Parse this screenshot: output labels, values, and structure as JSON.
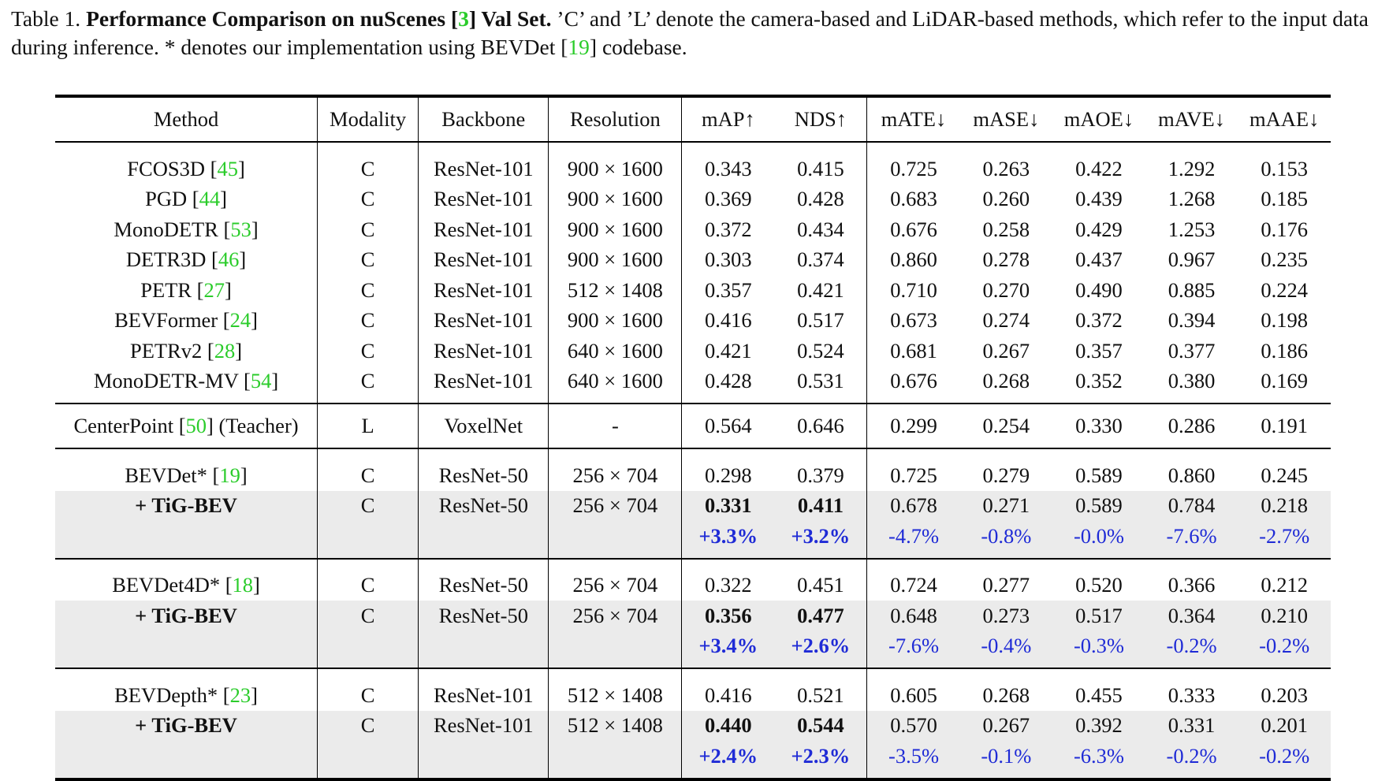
{
  "caption": {
    "label": "Table 1.",
    "title_before_cite": "Performance Comparison on nuScenes [",
    "title_cite": "3",
    "title_after_cite": "] Val Set.",
    "text_before_cite": "’C’ and ’L’ denote the camera-based and LiDAR-based methods, which refer to the input data during inference. * denotes our implementation using BEVDet [",
    "text_cite": "19",
    "text_after_cite": "] codebase."
  },
  "table": {
    "headers": [
      "Method",
      "Modality",
      "Backbone",
      "Resolution",
      "mAP↑",
      "NDS↑",
      "mATE↓",
      "mASE↓",
      "mAOE↓",
      "mAVE↓",
      "mAAE↓"
    ],
    "camera_methods": [
      {
        "name": "FCOS3D",
        "cite": "45",
        "suffix": "",
        "modality": "C",
        "backbone": "ResNet-101",
        "resolution": "900 × 1600",
        "map": "0.343",
        "nds": "0.415",
        "mate": "0.725",
        "mase": "0.263",
        "maoe": "0.422",
        "mave": "1.292",
        "maae": "0.153"
      },
      {
        "name": "PGD",
        "cite": "44",
        "suffix": "",
        "modality": "C",
        "backbone": "ResNet-101",
        "resolution": "900 × 1600",
        "map": "0.369",
        "nds": "0.428",
        "mate": "0.683",
        "mase": "0.260",
        "maoe": "0.439",
        "mave": "1.268",
        "maae": "0.185"
      },
      {
        "name": "MonoDETR",
        "cite": "53",
        "suffix": "",
        "modality": "C",
        "backbone": "ResNet-101",
        "resolution": "900 × 1600",
        "map": "0.372",
        "nds": "0.434",
        "mate": "0.676",
        "mase": "0.258",
        "maoe": "0.429",
        "mave": "1.253",
        "maae": "0.176"
      },
      {
        "name": "DETR3D",
        "cite": "46",
        "suffix": "",
        "modality": "C",
        "backbone": "ResNet-101",
        "resolution": "900 × 1600",
        "map": "0.303",
        "nds": "0.374",
        "mate": "0.860",
        "mase": "0.278",
        "maoe": "0.437",
        "mave": "0.967",
        "maae": "0.235"
      },
      {
        "name": "PETR",
        "cite": "27",
        "suffix": "",
        "modality": "C",
        "backbone": "ResNet-101",
        "resolution": "512 × 1408",
        "map": "0.357",
        "nds": "0.421",
        "mate": "0.710",
        "mase": "0.270",
        "maoe": "0.490",
        "mave": "0.885",
        "maae": "0.224"
      },
      {
        "name": "BEVFormer",
        "cite": "24",
        "suffix": "",
        "modality": "C",
        "backbone": "ResNet-101",
        "resolution": "900 × 1600",
        "map": "0.416",
        "nds": "0.517",
        "mate": "0.673",
        "mase": "0.274",
        "maoe": "0.372",
        "mave": "0.394",
        "maae": "0.198"
      },
      {
        "name": "PETRv2",
        "cite": "28",
        "suffix": "",
        "modality": "C",
        "backbone": "ResNet-101",
        "resolution": "640 × 1600",
        "map": "0.421",
        "nds": "0.524",
        "mate": "0.681",
        "mase": "0.267",
        "maoe": "0.357",
        "mave": "0.377",
        "maae": "0.186"
      },
      {
        "name": "MonoDETR-MV",
        "cite": "54",
        "suffix": "",
        "modality": "C",
        "backbone": "ResNet-101",
        "resolution": "640 × 1600",
        "map": "0.428",
        "nds": "0.531",
        "mate": "0.676",
        "mase": "0.268",
        "maoe": "0.352",
        "mave": "0.380",
        "maae": "0.169"
      }
    ],
    "teacher": {
      "name": "CenterPoint",
      "cite": "50",
      "suffix": "(Teacher)",
      "modality": "L",
      "backbone": "VoxelNet",
      "resolution": "-",
      "map": "0.564",
      "nds": "0.646",
      "mate": "0.299",
      "mase": "0.254",
      "maoe": "0.330",
      "mave": "0.286",
      "maae": "0.191"
    },
    "groups": [
      {
        "baseline": {
          "name": "BEVDet*",
          "cite": "19",
          "modality": "C",
          "backbone": "ResNet-50",
          "resolution": "256 × 704",
          "map": "0.298",
          "nds": "0.379",
          "mate": "0.725",
          "mase": "0.279",
          "maoe": "0.589",
          "mave": "0.860",
          "maae": "0.245"
        },
        "ours": {
          "name": "+ TiG-BEV",
          "modality": "C",
          "backbone": "ResNet-50",
          "resolution": "256 × 704",
          "map": "0.331",
          "nds": "0.411",
          "mate": "0.678",
          "mase": "0.271",
          "maoe": "0.589",
          "mave": "0.784",
          "maae": "0.218"
        },
        "delta": {
          "map": "+3.3%",
          "nds": "+3.2%",
          "mate": "-4.7%",
          "mase": "-0.8%",
          "maoe": "-0.0%",
          "mave": "-7.6%",
          "maae": "-2.7%"
        }
      },
      {
        "baseline": {
          "name": "BEVDet4D*",
          "cite": "18",
          "modality": "C",
          "backbone": "ResNet-50",
          "resolution": "256 × 704",
          "map": "0.322",
          "nds": "0.451",
          "mate": "0.724",
          "mase": "0.277",
          "maoe": "0.520",
          "mave": "0.366",
          "maae": "0.212"
        },
        "ours": {
          "name": "+ TiG-BEV",
          "modality": "C",
          "backbone": "ResNet-50",
          "resolution": "256 × 704",
          "map": "0.356",
          "nds": "0.477",
          "mate": "0.648",
          "mase": "0.273",
          "maoe": "0.517",
          "mave": "0.364",
          "maae": "0.210"
        },
        "delta": {
          "map": "+3.4%",
          "nds": "+2.6%",
          "mate": "-7.6%",
          "mase": "-0.4%",
          "maoe": "-0.3%",
          "mave": "-0.2%",
          "maae": "-0.2%"
        }
      },
      {
        "baseline": {
          "name": "BEVDepth*",
          "cite": "23",
          "modality": "C",
          "backbone": "ResNet-101",
          "resolution": "512 × 1408",
          "map": "0.416",
          "nds": "0.521",
          "mate": "0.605",
          "mase": "0.268",
          "maoe": "0.455",
          "mave": "0.333",
          "maae": "0.203"
        },
        "ours": {
          "name": "+ TiG-BEV",
          "modality": "C",
          "backbone": "ResNet-101",
          "resolution": "512 × 1408",
          "map": "0.440",
          "nds": "0.544",
          "mate": "0.570",
          "mase": "0.267",
          "maoe": "0.392",
          "mave": "0.331",
          "maae": "0.201"
        },
        "delta": {
          "map": "+2.4%",
          "nds": "+2.3%",
          "mate": "-3.5%",
          "mase": "-0.1%",
          "maoe": "-6.3%",
          "mave": "-0.2%",
          "maae": "-0.2%"
        }
      }
    ]
  }
}
